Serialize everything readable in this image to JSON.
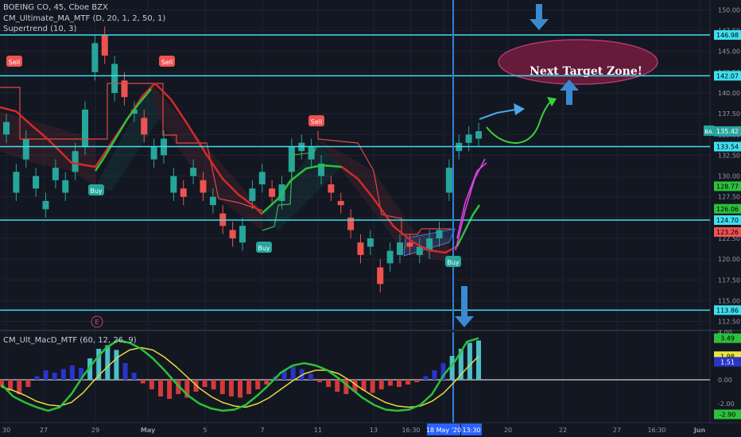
{
  "legend": {
    "symbol": "BOEING CO, 45, Cboe BZX",
    "ma_indicator": "CM_Ultimate_MA_MTF (D, 20, 1, 2, 50, 1)",
    "supertrend": "Supertrend (10, 3)",
    "macd_indicator": "CM_Ult_MacD_MTF (60, 12, 26, 9)"
  },
  "annotations": {
    "target_zone": "Next Target Zone!",
    "signals": [
      {
        "label": "Sell",
        "type": "sell",
        "date": "Apr 27",
        "price": 144.4
      },
      {
        "label": "Sell",
        "type": "sell",
        "date": "Apr 30",
        "price": 144.6
      },
      {
        "label": "Sell",
        "type": "sell",
        "date": "May 11",
        "price": 134.3
      },
      {
        "label": "Buy",
        "type": "buy",
        "date": "Apr 29",
        "price": 128.8
      },
      {
        "label": "Buy",
        "type": "buy",
        "date": "May 7",
        "price": 120.9
      },
      {
        "label": "Buy",
        "type": "buy",
        "date": "May 18",
        "price": 119.2
      }
    ],
    "earnings_marker": "E"
  },
  "colors": {
    "background": "#131722",
    "grid": "#1e2330",
    "up": "#26a69a",
    "down": "#ef5350",
    "level_lines": "#3fe0f0",
    "crosshair": "#2f7fd8",
    "ma_green": "#2cc13a",
    "ma_red": "#d32a2a",
    "target_zone": "#6e1c3c",
    "arrows": "#3a8ad0",
    "macd_hist_up": "#4cc0c8",
    "macd_hist_blue": "#2a35c8",
    "macd_hist_down": "#d33a3a"
  },
  "chart_data": {
    "type": "candlestick",
    "title": "BOEING CO, 45, Cboe BZX",
    "timeframe": "45 min",
    "ylim": [
      111.5,
      151.0
    ],
    "price_ticks": [
      112.5,
      115.0,
      117.5,
      120.0,
      122.5,
      125.0,
      127.5,
      130.0,
      132.5,
      135.0,
      137.5,
      140.0,
      142.5,
      145.0,
      147.5,
      150.0
    ],
    "x_ticks": [
      "30",
      "27",
      "29",
      "May",
      "5",
      "7",
      "11",
      "13",
      "16:30",
      "18 May '20",
      "13:30",
      "20",
      "22",
      "27",
      "16:30",
      "Jun"
    ],
    "series": [
      {
        "name": "BA",
        "price_path": [
          [
            135.0,
            136.5
          ],
          [
            128.0,
            130.5
          ],
          [
            132.0,
            134.5
          ],
          [
            128.5,
            130.0
          ],
          [
            126.0,
            127.0
          ],
          [
            129.5,
            131.0
          ],
          [
            128.0,
            129.5
          ],
          [
            130.5,
            133.0
          ],
          [
            133.5,
            138.0
          ],
          [
            142.5,
            146.0
          ],
          [
            147.0,
            144.5
          ],
          [
            140.0,
            143.5
          ],
          [
            141.5,
            139.5
          ],
          [
            137.5,
            138.0
          ],
          [
            137.0,
            135.0
          ],
          [
            132.0,
            133.5
          ],
          [
            132.5,
            134.5
          ],
          [
            128.0,
            130.0
          ],
          [
            128.5,
            127.5
          ],
          [
            130.0,
            131.0
          ],
          [
            129.5,
            128.0
          ],
          [
            126.5,
            127.5
          ],
          [
            125.5,
            124.0
          ],
          [
            123.5,
            122.5
          ],
          [
            122.0,
            124.0
          ],
          [
            127.0,
            128.5
          ],
          [
            129.0,
            130.5
          ],
          [
            128.5,
            127.5
          ],
          [
            127.0,
            129.0
          ],
          [
            130.5,
            133.5
          ],
          [
            133.0,
            134.0
          ],
          [
            132.0,
            133.5
          ],
          [
            130.0,
            131.5
          ],
          [
            129.0,
            128.0
          ],
          [
            127.0,
            126.5
          ],
          [
            125.0,
            123.5
          ],
          [
            122.0,
            120.5
          ],
          [
            121.5,
            122.5
          ],
          [
            119.0,
            117.0
          ],
          [
            119.5,
            121.0
          ],
          [
            120.5,
            122.0
          ],
          [
            122.0,
            121.5
          ],
          [
            120.5,
            121.5
          ],
          [
            121.0,
            122.5
          ],
          [
            122.5,
            123.5
          ],
          [
            128.0,
            131.0
          ],
          [
            133.0,
            134.0
          ],
          [
            134.0,
            135.0
          ],
          [
            134.5,
            135.4
          ]
        ]
      }
    ],
    "last_price": {
      "label": "BA",
      "value": 135.42
    },
    "horizontal_levels": [
      146.98,
      142.07,
      135.35,
      133.54,
      128.77,
      126.06,
      124.7,
      123.26,
      113.86
    ],
    "level_labels": [
      "146.98",
      "142.07",
      "135.35",
      "133.54",
      "128.77",
      "126.06",
      "124.70",
      "123.26",
      "113.86"
    ],
    "macd": {
      "ylim": [
        -3.6,
        4.0
      ],
      "ticks": [
        4.0,
        2.0,
        0.0,
        -2.0
      ],
      "labels": {
        "upper": "3.49",
        "signal": "1.98",
        "macd": "1.51",
        "zero": "0.00",
        "lower": "-2.90"
      },
      "histogram": [
        -0.6,
        -0.9,
        -1.2,
        -0.6,
        0.3,
        0.8,
        0.6,
        0.9,
        1.2,
        1.0,
        1.8,
        2.6,
        2.9,
        2.5,
        1.4,
        0.6,
        -0.3,
        -0.8,
        -1.4,
        -1.6,
        -1.2,
        -1.5,
        -1.0,
        -0.6,
        -0.8,
        -1.2,
        -1.4,
        -1.5,
        -1.2,
        -0.8,
        -0.4,
        0.3,
        0.8,
        1.1,
        0.9,
        0.5,
        -0.2,
        -0.6,
        -1.0,
        -1.2,
        -1.0,
        -0.9,
        -1.1,
        -0.8,
        -0.5,
        -0.6,
        -0.4,
        -0.2,
        0.3,
        0.8,
        1.4,
        2.0,
        2.6,
        3.1,
        3.3
      ],
      "macd_line": [
        -0.4,
        -1.4,
        -1.9,
        -2.3,
        -2.6,
        -2.3,
        -1.2,
        0.3,
        1.6,
        2.7,
        3.3,
        3.1,
        2.6,
        1.8,
        0.8,
        -0.3,
        -1.3,
        -2.0,
        -2.4,
        -2.6,
        -2.5,
        -2.1,
        -1.3,
        -0.4,
        0.6,
        1.2,
        1.4,
        1.2,
        0.8,
        0.1,
        -0.7,
        -1.5,
        -2.1,
        -2.5,
        -2.6,
        -2.5,
        -2.1,
        -1.2,
        0.4,
        1.6,
        3.2,
        3.49
      ],
      "signal_line": [
        -0.6,
        -0.9,
        -1.3,
        -1.8,
        -2.1,
        -2.2,
        -1.9,
        -1.1,
        0.0,
        1.0,
        1.9,
        2.5,
        2.7,
        2.5,
        1.9,
        1.1,
        0.2,
        -0.7,
        -1.4,
        -1.9,
        -2.2,
        -2.3,
        -2.0,
        -1.5,
        -0.8,
        -0.1,
        0.5,
        0.8,
        0.8,
        0.5,
        -0.1,
        -0.8,
        -1.4,
        -1.9,
        -2.2,
        -2.3,
        -2.2,
        -1.8,
        -1.1,
        -0.1,
        1.0,
        1.98
      ]
    }
  }
}
